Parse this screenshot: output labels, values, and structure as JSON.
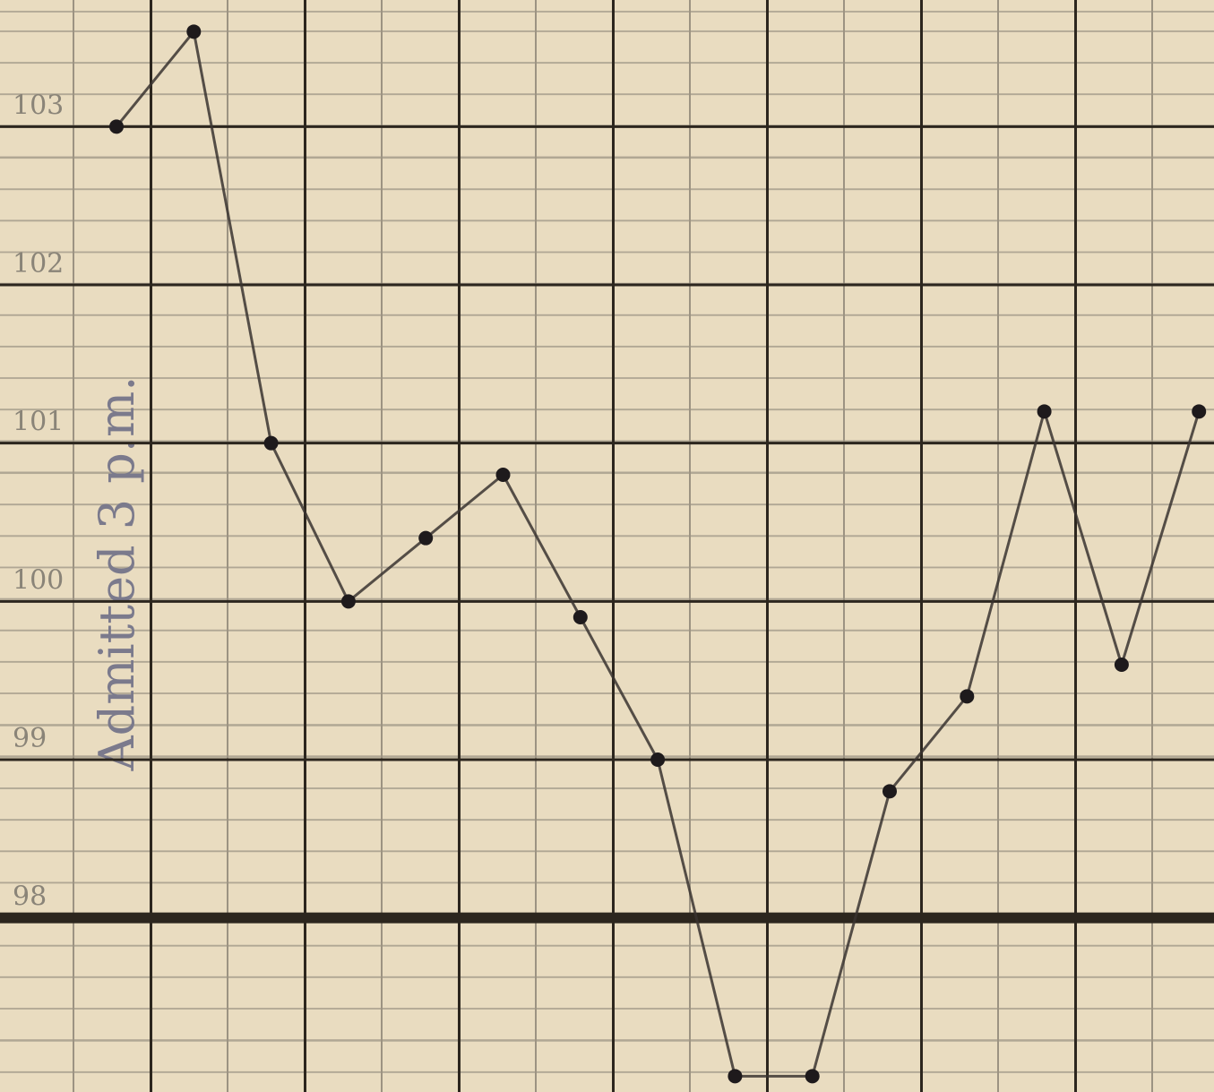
{
  "chart_data": {
    "type": "line",
    "annotation": "Admitted 3 p.m.",
    "categories": [
      null,
      null,
      null,
      null,
      null,
      null,
      null,
      null,
      null,
      null,
      null,
      null,
      null,
      null,
      null
    ],
    "values": [
      103.0,
      103.6,
      101.0,
      100.0,
      100.4,
      100.8,
      99.9,
      99.0,
      97.0,
      97.0,
      98.8,
      99.4,
      101.2,
      99.6,
      101.2
    ],
    "color": "#3a3430",
    "ylim": [
      96.9,
      103.8
    ],
    "yticks": [
      98,
      99,
      100,
      101,
      102,
      103
    ],
    "grid": true
  }
}
